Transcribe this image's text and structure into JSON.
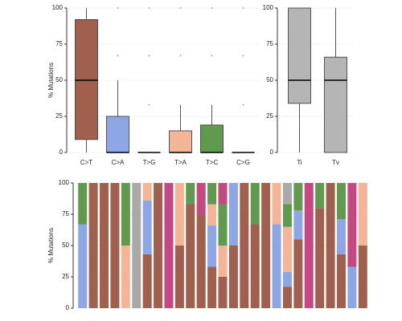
{
  "chart_data": [
    {
      "type": "box",
      "ylabel": "% Mutations",
      "categories": [
        "C>T",
        "C>A",
        "T>G",
        "T>A",
        "T>C",
        "C>G"
      ],
      "colors": [
        "#a0604d",
        "#8da6e6",
        "#a9a9a9",
        "#f3b595",
        "#5f9a4f",
        "#c64883"
      ],
      "boxes": [
        {
          "min": 0,
          "q1": 9,
          "median": 50,
          "q3": 92,
          "max": 100,
          "outliers": []
        },
        {
          "min": 0,
          "q1": 0,
          "median": 0,
          "q3": 25,
          "max": 50,
          "outliers": [
            67,
            100
          ]
        },
        {
          "min": 0,
          "q1": 0,
          "median": 0,
          "q3": 0,
          "max": 0,
          "outliers": [
            33,
            67,
            100
          ]
        },
        {
          "min": 0,
          "q1": 0,
          "median": 0,
          "q3": 15,
          "max": 33,
          "outliers": [
            67,
            100
          ]
        },
        {
          "min": 0,
          "q1": 0,
          "median": 0,
          "q3": 19,
          "max": 33,
          "outliers": [
            67,
            100
          ]
        },
        {
          "min": 0,
          "q1": 0,
          "median": 0,
          "q3": 0,
          "max": 0,
          "outliers": [
            33,
            67,
            100
          ]
        }
      ],
      "ylim": [
        0,
        100
      ],
      "yticks": [
        0,
        25,
        50,
        75,
        100
      ],
      "grid": true
    },
    {
      "type": "box",
      "categories": [
        "Ti",
        "Tv"
      ],
      "colors": [
        "#b5b5b5",
        "#b5b5b5"
      ],
      "boxes": [
        {
          "min": 0,
          "q1": 34,
          "median": 50,
          "q3": 100,
          "max": 100,
          "outliers": []
        },
        {
          "min": 0,
          "q1": 0,
          "median": 50,
          "q3": 66,
          "max": 100,
          "outliers": []
        }
      ],
      "ylim": [
        0,
        100
      ],
      "yticks": [
        0,
        25,
        50,
        75,
        100
      ],
      "grid": true
    },
    {
      "type": "stacked_bar",
      "ylabel": "% Mutations",
      "categories": [
        null,
        null,
        null,
        null,
        null,
        null,
        null,
        null,
        null,
        null,
        null,
        null,
        null,
        null,
        null,
        null,
        null,
        null,
        null,
        null,
        null,
        null,
        null,
        null,
        null,
        null,
        null
      ],
      "series": [
        {
          "color": "#a0604d",
          "values": [
            0,
            100,
            100,
            100,
            0,
            0,
            43,
            100,
            0,
            50,
            83,
            75,
            33,
            25,
            50,
            100,
            67,
            100,
            0,
            17,
            55,
            0,
            80,
            100,
            43,
            0,
            50
          ]
        },
        {
          "color": "#8da6e6",
          "values": [
            67,
            0,
            0,
            0,
            0,
            0,
            43,
            0,
            0,
            0,
            0,
            0,
            33,
            0,
            50,
            0,
            0,
            0,
            67,
            12,
            23,
            0,
            0,
            0,
            28,
            33,
            0
          ]
        },
        {
          "color": "#f3b595",
          "values": [
            0,
            0,
            0,
            0,
            50,
            0,
            14,
            0,
            0,
            50,
            0,
            0,
            17,
            25,
            0,
            0,
            0,
            0,
            33,
            36,
            0,
            0,
            0,
            0,
            0,
            0,
            50
          ]
        },
        {
          "color": "#5f9a4f",
          "values": [
            33,
            0,
            0,
            0,
            50,
            0,
            0,
            0,
            0,
            0,
            17,
            0,
            17,
            33,
            0,
            0,
            33,
            0,
            0,
            18,
            22,
            0,
            20,
            0,
            29,
            0,
            0
          ]
        },
        {
          "color": "#a9a9a9",
          "values": [
            0,
            0,
            0,
            0,
            0,
            100,
            0,
            0,
            0,
            0,
            0,
            0,
            0,
            0,
            0,
            0,
            0,
            0,
            0,
            17,
            0,
            0,
            0,
            0,
            0,
            0,
            0
          ]
        },
        {
          "color": "#c64883",
          "values": [
            0,
            0,
            0,
            0,
            0,
            0,
            0,
            0,
            100,
            0,
            0,
            25,
            0,
            17,
            0,
            0,
            0,
            0,
            0,
            0,
            0,
            100,
            0,
            0,
            0,
            67,
            0
          ]
        }
      ],
      "ylim": [
        0,
        100
      ],
      "yticks": [
        0,
        25,
        50,
        75,
        100
      ],
      "grid": true
    }
  ]
}
